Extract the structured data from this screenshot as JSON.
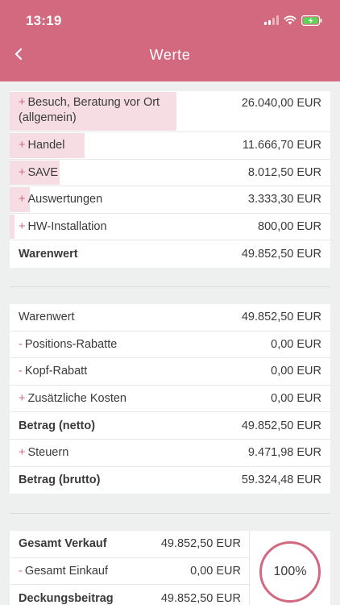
{
  "status_bar": {
    "time": "13:19"
  },
  "header": {
    "title": "Werte"
  },
  "positions": {
    "items": [
      {
        "sign": "+",
        "label_line1": "Besuch, Beratung vor Ort",
        "label_line2": "(allgemein)",
        "value": "26.040,00 EUR",
        "share": 0.522
      },
      {
        "sign": "+",
        "label": "Handel",
        "value": "11.666,70 EUR",
        "share": 0.234
      },
      {
        "sign": "+",
        "label": "SAVE",
        "value": "8.012,50 EUR",
        "share": 0.161
      },
      {
        "sign": "+",
        "label": "Auswertungen",
        "value": "3.333,30 EUR",
        "share": 0.067
      },
      {
        "sign": "+",
        "label": "HW-Installation",
        "value": "800,00 EUR",
        "share": 0.016
      }
    ],
    "total": {
      "label": "Warenwert",
      "value": "49.852,50 EUR"
    }
  },
  "calculation": {
    "rows": [
      {
        "sign": "",
        "label": "Warenwert",
        "value": "49.852,50 EUR",
        "bold": false
      },
      {
        "sign": "-",
        "label": "Positions-Rabatte",
        "value": "0,00 EUR",
        "bold": false
      },
      {
        "sign": "-",
        "label": "Kopf-Rabatt",
        "value": "0,00 EUR",
        "bold": false
      },
      {
        "sign": "+",
        "label": "Zusätzliche Kosten",
        "value": "0,00 EUR",
        "bold": false
      },
      {
        "sign": "",
        "label": "Betrag (netto)",
        "value": "49.852,50 EUR",
        "bold": true
      },
      {
        "sign": "+",
        "label": "Steuern",
        "value": "9.471,98 EUR",
        "bold": false
      },
      {
        "sign": "",
        "label": "Betrag (brutto)",
        "value": "59.324,48 EUR",
        "bold": true
      }
    ]
  },
  "margin": {
    "rows": [
      {
        "sign": "",
        "label": "Gesamt Verkauf",
        "value": "49.852,50 EUR",
        "bold": true
      },
      {
        "sign": "-",
        "label": "Gesamt Einkauf",
        "value": "0,00 EUR",
        "bold": false
      },
      {
        "sign": "",
        "label": "Deckungsbeitrag",
        "value": "49.852,50 EUR",
        "bold": true
      }
    ],
    "percent": "100%"
  },
  "colors": {
    "accent": "#d2697f",
    "highlight": "#f6dde3",
    "background": "#eef0f0"
  },
  "icons": {
    "back": "chevron-left-icon",
    "signal": "cellular-signal-icon",
    "wifi": "wifi-icon",
    "battery": "battery-charging-icon"
  }
}
